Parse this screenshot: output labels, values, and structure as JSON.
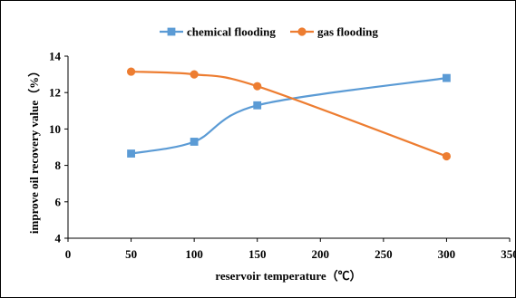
{
  "chart_data": {
    "type": "line",
    "title": "",
    "xlabel": "reservoir temperature（℃）",
    "ylabel": "improve oil recovery value（%）",
    "xlim": [
      0,
      350
    ],
    "ylim": [
      4,
      14
    ],
    "xticks": [
      0,
      50,
      100,
      150,
      200,
      250,
      300,
      350
    ],
    "yticks": [
      4,
      6,
      8,
      10,
      12,
      14
    ],
    "xtick_labels": [
      "0",
      "50",
      "100",
      "150",
      "200",
      "250",
      "300",
      "350"
    ],
    "ytick_labels": [
      "4",
      "6",
      "8",
      "10",
      "12",
      "14"
    ],
    "grid": false,
    "legend_position": "top",
    "smooth": true,
    "series": [
      {
        "name": "chemical flooding",
        "color": "#5b9bd5",
        "marker": "square",
        "x": [
          50,
          100,
          150,
          300
        ],
        "y": [
          8.65,
          9.3,
          11.3,
          12.8
        ]
      },
      {
        "name": "gas flooding",
        "color": "#ed7d31",
        "marker": "circle",
        "x": [
          50,
          100,
          150,
          300
        ],
        "y": [
          13.15,
          13.0,
          12.35,
          8.5
        ]
      }
    ]
  }
}
